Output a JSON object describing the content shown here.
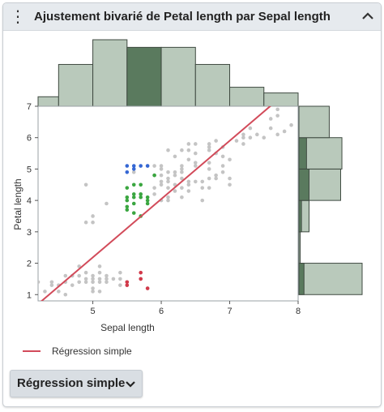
{
  "header": {
    "title": "Ajustement bivarié de Petal length par Sepal length"
  },
  "legend": {
    "line_label": "Régression simple",
    "line_color": "#d24b5a"
  },
  "dropdown": {
    "label": "Régression simple"
  },
  "icons": {
    "menu": "vertical-ellipsis-icon",
    "collapse": "chevron-up-icon",
    "dropdown": "chevron-down-icon"
  },
  "colors": {
    "hist_fill": "#b9c9bb",
    "hist_highlight": "#5a7a5e",
    "points_default": "#c4c4c4",
    "points_blue": "#3567d4",
    "points_green": "#3aa640",
    "points_red": "#d2394a",
    "regression": "#d24b5a"
  },
  "chart_data": {
    "type": "scatter",
    "xlabel": "Sepal length",
    "ylabel": "Petal length",
    "xlim": [
      4.2,
      8.0
    ],
    "ylim": [
      0.8,
      7.0
    ],
    "x_ticks": [
      5,
      6,
      7,
      8
    ],
    "y_ticks": [
      1,
      2,
      3,
      4,
      5,
      6,
      7
    ],
    "regression": {
      "name": "Régression simple",
      "slope": 1.8575,
      "intercept": -7.101
    },
    "series": [
      {
        "color": "#c4c4c4",
        "points": [
          [
            4.3,
            1.1
          ],
          [
            4.4,
            1.3
          ],
          [
            4.4,
            1.4
          ],
          [
            4.5,
            1.3
          ],
          [
            4.6,
            1.4
          ],
          [
            4.6,
            1.0
          ],
          [
            4.7,
            1.3
          ],
          [
            4.7,
            1.6
          ],
          [
            4.8,
            1.4
          ],
          [
            4.8,
            1.6
          ],
          [
            4.8,
            1.9
          ],
          [
            4.9,
            1.4
          ],
          [
            4.9,
            1.5
          ],
          [
            5.0,
            1.4
          ],
          [
            5.0,
            1.5
          ],
          [
            5.0,
            1.6
          ],
          [
            5.0,
            1.2
          ],
          [
            5.1,
            1.4
          ],
          [
            5.1,
            1.5
          ],
          [
            5.1,
            1.7
          ],
          [
            5.1,
            1.9
          ],
          [
            5.2,
            1.4
          ],
          [
            5.2,
            1.5
          ],
          [
            5.3,
            1.5
          ],
          [
            5.4,
            1.3
          ],
          [
            5.4,
            1.5
          ],
          [
            5.4,
            1.7
          ],
          [
            5.5,
            1.3
          ],
          [
            5.5,
            1.4
          ],
          [
            5.7,
            1.5
          ],
          [
            5.8,
            1.2
          ],
          [
            5.2,
            1.6
          ],
          [
            4.9,
            1.7
          ],
          [
            4.5,
            1.1
          ],
          [
            4.2,
            1.4
          ],
          [
            4.6,
            1.6
          ],
          [
            5.0,
            1.1
          ],
          [
            5.1,
            1.1
          ],
          [
            4.9,
            3.3
          ],
          [
            5.0,
            3.3
          ],
          [
            5.0,
            3.5
          ],
          [
            5.2,
            3.9
          ],
          [
            4.9,
            4.5
          ],
          [
            6.0,
            4.0
          ],
          [
            6.1,
            4.0
          ],
          [
            6.2,
            4.3
          ],
          [
            6.1,
            4.7
          ],
          [
            6.1,
            4.6
          ],
          [
            6.3,
            4.4
          ],
          [
            6.4,
            4.3
          ],
          [
            6.6,
            4.4
          ],
          [
            6.7,
            4.4
          ],
          [
            6.8,
            4.8
          ],
          [
            6.7,
            5.0
          ],
          [
            6.9,
            4.9
          ],
          [
            7.0,
            4.7
          ],
          [
            6.4,
            4.5
          ],
          [
            6.3,
            4.9
          ],
          [
            6.5,
            4.6
          ],
          [
            6.6,
            4.6
          ],
          [
            5.9,
            4.2
          ],
          [
            6.0,
            4.5
          ],
          [
            6.2,
            4.5
          ],
          [
            6.3,
            4.7
          ],
          [
            6.4,
            5.3
          ],
          [
            6.5,
            5.5
          ],
          [
            6.3,
            5.1
          ],
          [
            6.7,
            5.7
          ],
          [
            6.7,
            5.8
          ],
          [
            6.8,
            5.5
          ],
          [
            6.9,
            5.1
          ],
          [
            6.9,
            5.7
          ],
          [
            7.0,
            5.3
          ],
          [
            7.1,
            5.9
          ],
          [
            7.2,
            5.8
          ],
          [
            7.2,
            6.0
          ],
          [
            7.2,
            6.1
          ],
          [
            7.3,
            6.3
          ],
          [
            7.4,
            6.1
          ],
          [
            7.6,
            6.6
          ],
          [
            7.7,
            6.1
          ],
          [
            7.7,
            6.7
          ],
          [
            7.7,
            6.9
          ],
          [
            7.9,
            6.4
          ],
          [
            6.5,
            5.8
          ],
          [
            6.4,
            5.6
          ],
          [
            6.4,
            5.8
          ],
          [
            6.3,
            5.0
          ],
          [
            6.3,
            5.6
          ],
          [
            6.1,
            5.6
          ],
          [
            6.0,
            5.0
          ],
          [
            6.0,
            4.8
          ],
          [
            5.9,
            5.1
          ],
          [
            5.9,
            4.8
          ],
          [
            6.2,
            5.4
          ],
          [
            6.2,
            4.8
          ],
          [
            6.5,
            5.2
          ],
          [
            6.5,
            5.1
          ],
          [
            6.7,
            5.6
          ],
          [
            6.7,
            5.2
          ],
          [
            6.8,
            5.9
          ],
          [
            6.1,
            4.9
          ],
          [
            5.8,
            5.1
          ],
          [
            5.6,
            4.9
          ],
          [
            6.6,
            4.0
          ],
          [
            6.8,
            4.7
          ],
          [
            7.0,
            4.5
          ],
          [
            6.0,
            5.1
          ],
          [
            5.7,
            4.2
          ],
          [
            6.3,
            4.1
          ],
          [
            6.1,
            4.1
          ],
          [
            6.4,
            4.6
          ],
          [
            6.2,
            4.9
          ],
          [
            7.6,
            6.3
          ],
          [
            7.8,
            6.2
          ],
          [
            7.5,
            6.0
          ],
          [
            7.3,
            6.0
          ],
          [
            6.7,
            4.7
          ],
          [
            6.9,
            5.4
          ],
          [
            5.9,
            4.4
          ],
          [
            6.0,
            4.6
          ],
          [
            6.1,
            4.4
          ]
        ]
      },
      {
        "color": "#3567d4",
        "points": [
          [
            5.6,
            5.0
          ],
          [
            5.7,
            5.1
          ],
          [
            5.8,
            5.1
          ],
          [
            5.5,
            4.9
          ],
          [
            5.6,
            5.1
          ],
          [
            5.5,
            5.1
          ]
        ]
      },
      {
        "color": "#3aa640",
        "points": [
          [
            5.5,
            4.0
          ],
          [
            5.5,
            4.1
          ],
          [
            5.5,
            3.8
          ],
          [
            5.5,
            3.7
          ],
          [
            5.6,
            4.2
          ],
          [
            5.6,
            4.5
          ],
          [
            5.6,
            4.1
          ],
          [
            5.6,
            3.9
          ],
          [
            5.7,
            4.2
          ],
          [
            5.7,
            4.5
          ],
          [
            5.7,
            4.1
          ],
          [
            5.7,
            3.5
          ],
          [
            5.8,
            4.0
          ],
          [
            5.8,
            4.1
          ],
          [
            5.8,
            3.9
          ],
          [
            5.9,
            4.8
          ],
          [
            5.5,
            4.4
          ],
          [
            5.6,
            3.6
          ]
        ]
      },
      {
        "color": "#d2394a",
        "points": [
          [
            5.5,
            1.3
          ],
          [
            5.5,
            1.4
          ],
          [
            5.7,
            1.7
          ],
          [
            5.7,
            1.5
          ],
          [
            5.8,
            1.2
          ]
        ]
      }
    ],
    "top_histogram": {
      "bin_edges": [
        4.0,
        4.5,
        5.0,
        5.5,
        6.0,
        6.5,
        7.0,
        7.5,
        8.0
      ],
      "counts": [
        5,
        22,
        35,
        31,
        31,
        22,
        10,
        7
      ],
      "highlight_bin": 3
    },
    "right_histogram": {
      "bin_edges": [
        1,
        2,
        3,
        4,
        5,
        6,
        7
      ],
      "counts": [
        50,
        1,
        8,
        33,
        34,
        24
      ],
      "bin_counts_prefix": [
        0,
        0
      ],
      "highlight_counts": [
        4,
        0,
        2,
        8,
        6,
        0
      ]
    }
  }
}
